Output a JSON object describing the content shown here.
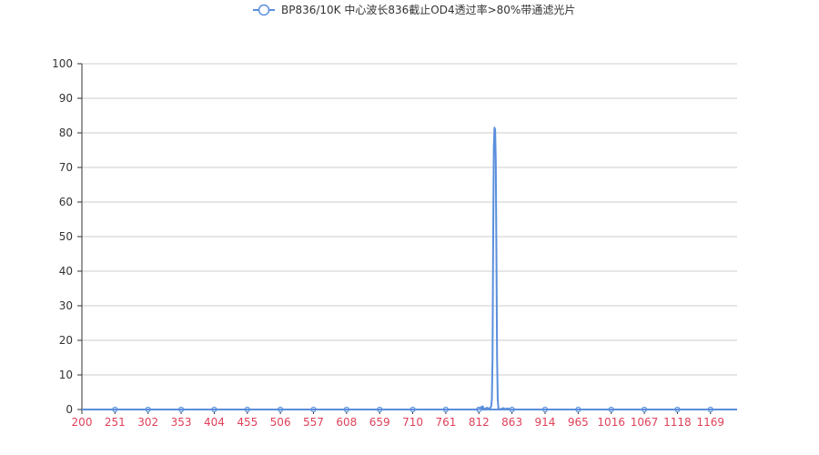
{
  "chart_data": {
    "type": "line",
    "title": "",
    "xlabel": "",
    "ylabel": "",
    "series": [
      {
        "name": "BP836/10K 中心波长836截止OD4透过率>80%带通滤光片",
        "color": "#5b8fdc",
        "points": [
          [
            200,
            0
          ],
          [
            810,
            0
          ],
          [
            815,
            0.3
          ],
          [
            816,
            0.8
          ],
          [
            817,
            0.2
          ],
          [
            818,
            0.9
          ],
          [
            819,
            0.1
          ],
          [
            822,
            0.3
          ],
          [
            825,
            0.5
          ],
          [
            828,
            0.2
          ],
          [
            830,
            0.6
          ],
          [
            831,
            1
          ],
          [
            832,
            3
          ],
          [
            833,
            15
          ],
          [
            834,
            50
          ],
          [
            835,
            76
          ],
          [
            836,
            81.5
          ],
          [
            837,
            81
          ],
          [
            838,
            72
          ],
          [
            839,
            45
          ],
          [
            840,
            15
          ],
          [
            841,
            3
          ],
          [
            842,
            0.5
          ],
          [
            843,
            0
          ],
          [
            847,
            0.2
          ],
          [
            850,
            0.4
          ],
          [
            853,
            0.1
          ],
          [
            856,
            0.3
          ],
          [
            859,
            0.1
          ],
          [
            862,
            0
          ],
          [
            1210,
            0
          ]
        ]
      }
    ],
    "x_ticks": [
      "200",
      "251",
      "302",
      "353",
      "404",
      "455",
      "506",
      "557",
      "608",
      "659",
      "710",
      "761",
      "812",
      "863",
      "914",
      "965",
      "1016",
      "1067",
      "1118",
      "1169"
    ],
    "y_ticks": [
      "0",
      "10",
      "20",
      "30",
      "40",
      "50",
      "60",
      "70",
      "80",
      "90",
      "100"
    ],
    "xlim": [
      200,
      1210
    ],
    "ylim": [
      0,
      100
    ],
    "grid": true,
    "legend_position": "top-center",
    "colors": {
      "line": "#5b8fdc",
      "grid": "#cccccc",
      "axis": "#333333",
      "x_tick_label": "#e0405a",
      "y_tick_label": "#333333"
    }
  }
}
